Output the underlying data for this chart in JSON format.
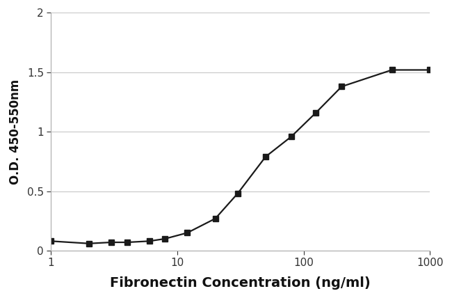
{
  "x_data": [
    1,
    2,
    3,
    4,
    6,
    8,
    12,
    20,
    30,
    50,
    80,
    125,
    200,
    500,
    1000
  ],
  "y_data": [
    0.08,
    0.06,
    0.07,
    0.07,
    0.08,
    0.1,
    0.15,
    0.27,
    0.48,
    0.79,
    0.96,
    1.16,
    1.38,
    1.52,
    1.52
  ],
  "xlabel": "Fibronectin Concentration (ng/ml)",
  "ylabel": "O.D. 450-550nm",
  "ylim": [
    0,
    2.0
  ],
  "xlim": [
    1,
    1000
  ],
  "yticks": [
    0,
    0.5,
    1.0,
    1.5,
    2.0
  ],
  "xticks": [
    1,
    10,
    100,
    1000
  ],
  "line_color": "#1a1a1a",
  "marker": "s",
  "marker_color": "#1a1a1a",
  "marker_size": 6,
  "line_width": 1.6,
  "grid_color": "#c8c8c8",
  "background_color": "#ffffff",
  "xlabel_fontsize": 14,
  "ylabel_fontsize": 12,
  "tick_fontsize": 11,
  "xlabel_fontweight": "bold",
  "ylabel_fontweight": "bold",
  "spine_color": "#aaaaaa"
}
